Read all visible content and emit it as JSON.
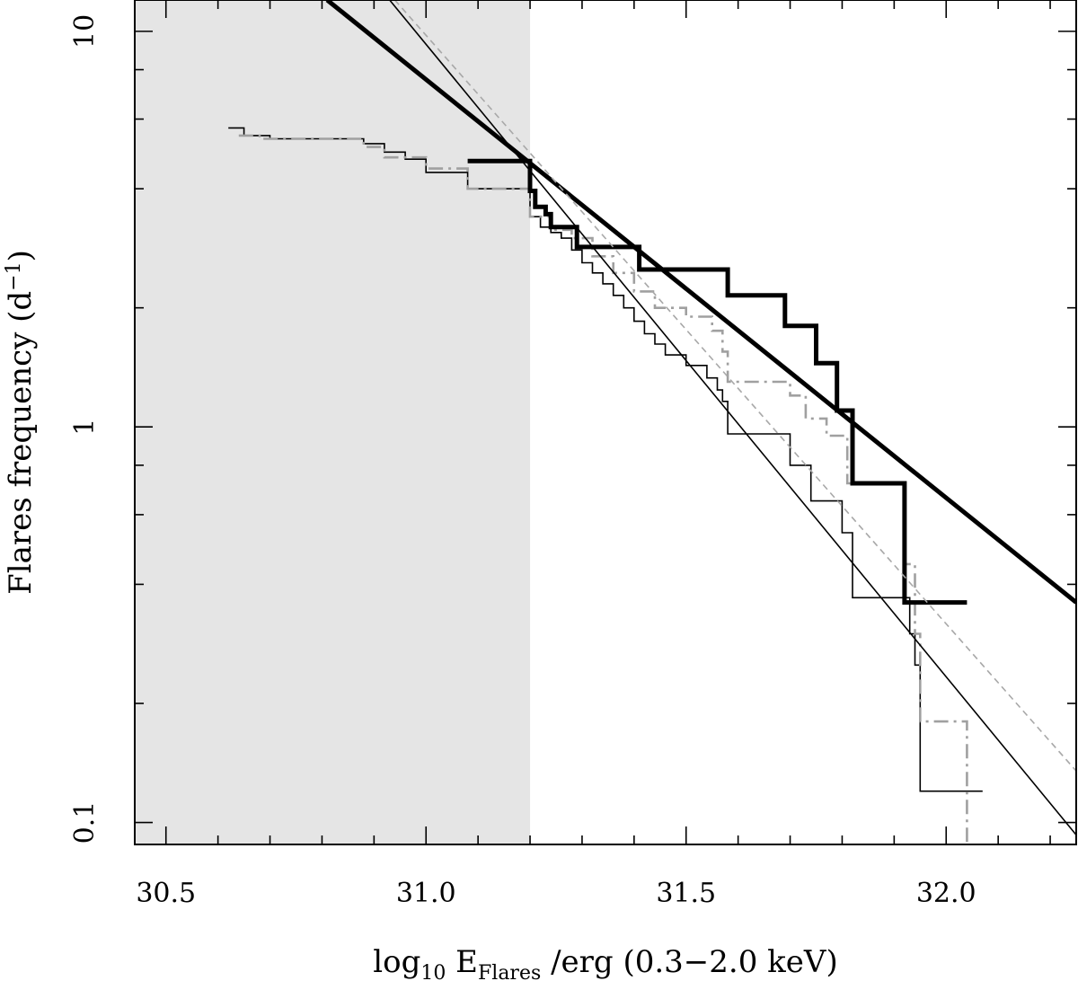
{
  "chart_data": {
    "type": "line",
    "xlabel": {
      "prefix": "log",
      "prefix_sub": "10",
      "main": " E",
      "main_sub": "Flares",
      "suffix": " /erg (0.3−2.0 keV)"
    },
    "ylabel": {
      "main": "Flares frequency (d",
      "sup": "−1",
      "suffix": ")"
    },
    "xlim": [
      30.44,
      32.25
    ],
    "ylim": [
      0.088,
      12.0
    ],
    "y_scale": "log",
    "x_ticks": [
      30.5,
      31.0,
      31.5,
      32.0
    ],
    "x_tick_labels": [
      "30.5",
      "31.0",
      "31.5",
      "32.0"
    ],
    "y_ticks": [
      0.1,
      1,
      10
    ],
    "y_tick_labels": [
      "0.1",
      "1",
      "10"
    ],
    "shaded_region": {
      "x": [
        30.44,
        31.2
      ],
      "color": "#e5e5e5"
    },
    "grid": false,
    "series": [
      {
        "kind": "step",
        "style": "thin-black",
        "x": [
          30.62,
          30.65,
          30.7,
          30.88,
          30.92,
          30.96,
          31.0,
          31.08,
          31.2,
          31.22,
          31.24,
          31.26,
          31.28,
          31.3,
          31.32,
          31.34,
          31.36,
          31.38,
          31.4,
          31.42,
          31.44,
          31.46,
          31.5,
          31.54,
          31.56,
          31.57,
          31.58,
          31.7,
          31.74,
          31.8,
          31.82,
          31.93,
          31.94,
          31.95,
          32.07
        ],
        "y": [
          5.7,
          5.45,
          5.35,
          5.2,
          4.95,
          4.75,
          4.4,
          4.0,
          3.4,
          3.2,
          3.1,
          3.0,
          2.8,
          2.6,
          2.45,
          2.3,
          2.15,
          2.0,
          1.85,
          1.72,
          1.62,
          1.52,
          1.43,
          1.33,
          1.24,
          1.16,
          0.96,
          0.8,
          0.65,
          0.54,
          0.37,
          0.3,
          0.25,
          0.12,
          0.12
        ]
      },
      {
        "kind": "step",
        "style": "dashed-gray",
        "x": [
          30.64,
          30.68,
          30.88,
          30.92,
          31.0,
          31.08,
          31.2,
          31.24,
          31.28,
          31.32,
          31.36,
          31.4,
          31.44,
          31.5,
          31.55,
          31.57,
          31.58,
          31.67,
          31.7,
          31.73,
          31.77,
          31.81,
          31.92,
          31.94,
          31.95,
          32.04,
          32.08
        ],
        "y": [
          5.45,
          5.35,
          5.1,
          4.8,
          4.5,
          4.0,
          3.4,
          3.15,
          3.0,
          2.7,
          2.45,
          2.2,
          2.0,
          1.9,
          1.75,
          1.55,
          1.3,
          1.3,
          1.2,
          1.05,
          0.95,
          0.72,
          0.45,
          0.3,
          0.18,
          0.085,
          0.085
        ]
      },
      {
        "kind": "step",
        "style": "thick-black",
        "x": [
          31.08,
          31.2,
          31.21,
          31.22,
          31.23,
          31.24,
          31.28,
          31.29,
          31.4,
          31.41,
          31.57,
          31.58,
          31.68,
          31.69,
          31.74,
          31.75,
          31.78,
          31.79,
          31.81,
          31.82,
          31.91,
          31.92,
          32.04
        ],
        "y": [
          4.7,
          3.95,
          3.6,
          3.6,
          3.45,
          3.2,
          3.2,
          2.85,
          2.85,
          2.5,
          2.5,
          2.15,
          2.15,
          1.8,
          1.8,
          1.45,
          1.45,
          1.1,
          1.1,
          0.72,
          0.72,
          0.36,
          0.36
        ]
      },
      {
        "kind": "line",
        "style": "thick-black",
        "x": [
          30.81,
          32.25
        ],
        "y": [
          12.0,
          0.36
        ]
      },
      {
        "kind": "line",
        "style": "thin-black",
        "x": [
          30.93,
          32.25
        ],
        "y": [
          12.0,
          0.093
        ]
      },
      {
        "kind": "line",
        "style": "dashed-gray-thin",
        "x": [
          30.94,
          32.25
        ],
        "y": [
          12.0,
          0.135
        ]
      }
    ]
  }
}
